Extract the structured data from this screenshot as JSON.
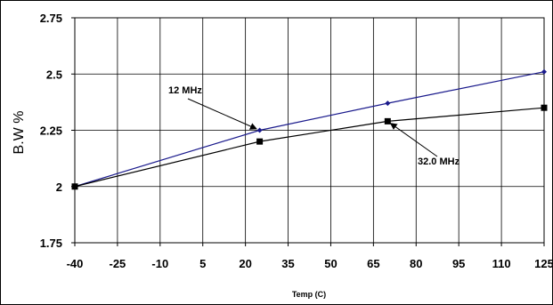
{
  "chart_data": {
    "type": "line",
    "title": "",
    "xlabel": "Temp (C)",
    "ylabel": "B.W %",
    "x_ticks": [
      "-40",
      "-25",
      "-10",
      "5",
      "20",
      "35",
      "50",
      "65",
      "80",
      "95",
      "110",
      "125"
    ],
    "y_ticks": [
      "1.75",
      "2",
      "2.25",
      "2.5",
      "2.75"
    ],
    "xlim": [
      -40,
      125
    ],
    "ylim": [
      1.75,
      2.75
    ],
    "grid": true,
    "legend": "none",
    "series": [
      {
        "label": "12 MHz",
        "color": "#1a1a8c",
        "marker": "diamond",
        "points": [
          {
            "x": -40,
            "y": 2.0
          },
          {
            "x": 25,
            "y": 2.25
          },
          {
            "x": 70,
            "y": 2.37
          },
          {
            "x": 125,
            "y": 2.51
          }
        ]
      },
      {
        "label": "32.0 MHz",
        "color": "#000000",
        "marker": "square",
        "points": [
          {
            "x": -40,
            "y": 2.0
          },
          {
            "x": 25,
            "y": 2.2
          },
          {
            "x": 70,
            "y": 2.29
          },
          {
            "x": 125,
            "y": 2.35
          }
        ]
      }
    ],
    "annotations": [
      {
        "text": "12 MHz",
        "series": 0,
        "point": 1
      },
      {
        "text": "32.0 MHz",
        "series": 1,
        "point": 2
      }
    ]
  }
}
